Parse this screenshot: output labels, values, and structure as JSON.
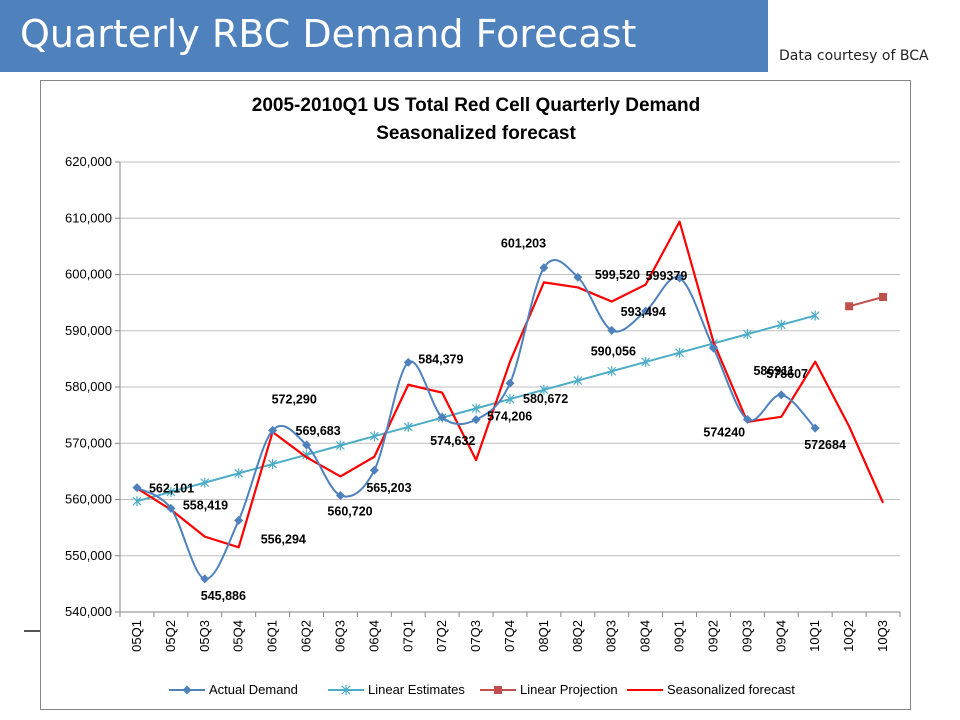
{
  "header": {
    "title": "Quarterly RBC Demand Forecast",
    "courtesy": "Data courtesy of BCA"
  },
  "chart_data": {
    "type": "line",
    "title": "2005-2010Q1 US Total Red Cell Quarterly Demand",
    "subtitle": "Seasonalized forecast",
    "xlabel": "",
    "ylabel": "",
    "ylim": [
      540000,
      620000
    ],
    "yticks": [
      540000,
      550000,
      560000,
      570000,
      580000,
      590000,
      600000,
      610000,
      620000
    ],
    "ytick_labels": [
      "540,000",
      "550,000",
      "560,000",
      "570,000",
      "580,000",
      "590,000",
      "600,000",
      "610,000",
      "620,000"
    ],
    "grid": true,
    "legend_position": "bottom",
    "categories": [
      "05Q1",
      "05Q2",
      "05Q3",
      "05Q4",
      "06Q1",
      "06Q2",
      "06Q3",
      "06Q4",
      "07Q1",
      "07Q2",
      "07Q3",
      "07Q4",
      "08Q1",
      "08Q2",
      "08Q3",
      "08Q4",
      "09Q1",
      "09Q2",
      "09Q3",
      "09Q4",
      "10Q1",
      "10Q2",
      "10Q3"
    ],
    "series": [
      {
        "name": "Actual Demand",
        "color": "#4f81bd",
        "marker": "diamond",
        "smooth": true,
        "values": [
          562101,
          558419,
          545886,
          556294,
          572290,
          569683,
          560720,
          565203,
          584379,
          574632,
          574206,
          580672,
          601203,
          599520,
          590056,
          593494,
          599379,
          586911,
          574240,
          578607,
          572684,
          null,
          null
        ],
        "labels": [
          "562,101",
          "558,419",
          "545,886",
          "556,294",
          "572,290",
          "569,683",
          "560,720",
          "565,203",
          "584,379",
          "574,632",
          "574,206",
          "580,672",
          "601,203",
          "599,520",
          "590,056",
          "593,494",
          "599379",
          "586911",
          "574240",
          "578607",
          "572684",
          "",
          ""
        ]
      },
      {
        "name": "Linear Estimates",
        "color": "#4bacc6",
        "marker": "star",
        "smooth": false,
        "values": [
          559700,
          561350,
          563000,
          564650,
          566300,
          567950,
          569600,
          571250,
          572900,
          574550,
          576200,
          577850,
          579500,
          581150,
          582800,
          584450,
          586100,
          587750,
          589400,
          591050,
          592700,
          null,
          null
        ]
      },
      {
        "name": "Linear Projection",
        "color": "#c0504d",
        "marker": "square",
        "smooth": false,
        "values": [
          null,
          null,
          null,
          null,
          null,
          null,
          null,
          null,
          null,
          null,
          null,
          null,
          null,
          null,
          null,
          null,
          null,
          null,
          null,
          null,
          null,
          594350,
          596000
        ]
      },
      {
        "name": "Seasonalized forecast",
        "color": "#ff0000",
        "marker": "none",
        "smooth": false,
        "values": [
          562000,
          558200,
          553400,
          551500,
          572000,
          567500,
          564100,
          567600,
          580400,
          579000,
          567000,
          584500,
          598600,
          597700,
          595200,
          598200,
          609400,
          588000,
          573800,
          574700,
          584500,
          573000,
          559400
        ]
      }
    ]
  }
}
